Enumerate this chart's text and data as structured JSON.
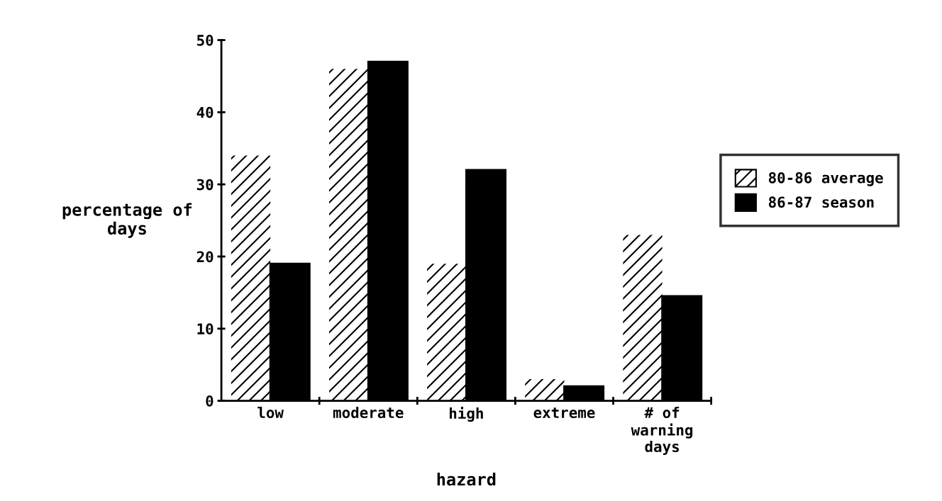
{
  "chart_data": {
    "type": "bar",
    "categories": [
      "low",
      "moderate",
      "high",
      "extreme",
      "# of\nwarning\ndays"
    ],
    "series": [
      {
        "name": "80-86 average",
        "color": "#ffffff",
        "values": [
          34,
          46,
          19,
          3,
          23
        ]
      },
      {
        "name": "86-87 season",
        "color": "#000000",
        "values": [
          19,
          47,
          32,
          2,
          14.5
        ]
      }
    ],
    "xlabel": "hazard",
    "ylabel": "percentage of\ndays",
    "ylim": [
      0,
      50
    ],
    "yticks": [
      0,
      10,
      20,
      30,
      40,
      50
    ],
    "grid": false,
    "legend": "right"
  }
}
